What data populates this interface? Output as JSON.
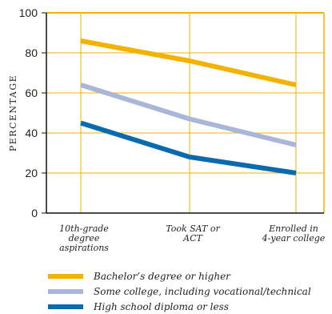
{
  "chart_data": {
    "type": "line",
    "ylabel": "PERCENTAGE",
    "xlabel": "",
    "ylim": [
      0,
      100
    ],
    "yticks": [
      0,
      20,
      40,
      60,
      80,
      100
    ],
    "categories": [
      [
        "10th-grade",
        "degree",
        "aspirations"
      ],
      [
        "Took SAT or",
        "ACT"
      ],
      [
        "Enrolled in",
        "4-year college"
      ]
    ],
    "grid": true,
    "legend_position": "bottom",
    "series": [
      {
        "name": "Bachelor’s degree or higher",
        "color": "#F2B200",
        "values": [
          86,
          76,
          64
        ]
      },
      {
        "name": "Some college, including vocational/technical",
        "color": "#A9B6D8",
        "values": [
          64,
          47,
          34
        ]
      },
      {
        "name": "High school diploma or less",
        "color": "#0A6AAE",
        "values": [
          45,
          28,
          20
        ]
      }
    ],
    "colors": {
      "frame": "#F2B200",
      "grid": "#F2B200",
      "axis": "#111111"
    }
  }
}
